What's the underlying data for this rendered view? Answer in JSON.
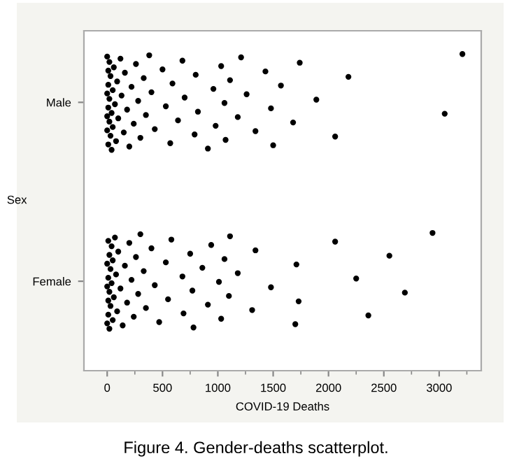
{
  "chart_data": {
    "type": "scatter",
    "orientation": "horizontal",
    "categories": [
      "Male",
      "Female"
    ],
    "xlabel": "COVID-19 Deaths",
    "ylabel": "Sex",
    "xlim": [
      -210,
      3380
    ],
    "xticks": [
      0,
      500,
      1000,
      1500,
      2000,
      2500,
      3000
    ],
    "grid": false,
    "legend": false,
    "marker": "circle",
    "series": [
      {
        "color": "#000000",
        "x": [
          "Male",
          "Male",
          "Male",
          "Male",
          "Male",
          "Male",
          "Male",
          "Male",
          "Male",
          "Male",
          "Male",
          "Male",
          "Male",
          "Male",
          "Male",
          "Male",
          "Male",
          "Male",
          "Male",
          "Male",
          "Male",
          "Male",
          "Male",
          "Male",
          "Male",
          "Male",
          "Male",
          "Male",
          "Male",
          "Male",
          "Male",
          "Male",
          "Male",
          "Male",
          "Male",
          "Male",
          "Male",
          "Male",
          "Male",
          "Male",
          "Male",
          "Male",
          "Male",
          "Male",
          "Male",
          "Male",
          "Male",
          "Male",
          "Male",
          "Male",
          "Male",
          "Male",
          "Male",
          "Male",
          "Male",
          "Male",
          "Male",
          "Male",
          "Male",
          "Male",
          "Male",
          "Male",
          "Male",
          "Male",
          "Male",
          "Male",
          "Male",
          "Male",
          "Male",
          "Male"
        ],
        "values": [
          3210,
          3050,
          2180,
          2060,
          1890,
          1740,
          1680,
          1570,
          1500,
          1480,
          1430,
          1340,
          1260,
          1210,
          1180,
          1110,
          1070,
          1060,
          1030,
          980,
          960,
          910,
          820,
          800,
          790,
          700,
          680,
          640,
          590,
          570,
          530,
          500,
          430,
          400,
          380,
          350,
          330,
          300,
          280,
          260,
          240,
          220,
          200,
          180,
          160,
          150,
          130,
          120,
          100,
          90,
          80,
          70,
          60,
          50,
          50,
          40,
          40,
          30,
          30,
          20,
          20,
          20,
          10,
          10,
          10,
          10,
          0,
          0,
          0,
          0
        ]
      },
      {
        "color": "#000000",
        "x": [
          "Female",
          "Female",
          "Female",
          "Female",
          "Female",
          "Female",
          "Female",
          "Female",
          "Female",
          "Female",
          "Female",
          "Female",
          "Female",
          "Female",
          "Female",
          "Female",
          "Female",
          "Female",
          "Female",
          "Female",
          "Female",
          "Female",
          "Female",
          "Female",
          "Female",
          "Female",
          "Female",
          "Female",
          "Female",
          "Female",
          "Female",
          "Female",
          "Female",
          "Female",
          "Female",
          "Female",
          "Female",
          "Female",
          "Female",
          "Female",
          "Female",
          "Female",
          "Female",
          "Female",
          "Female",
          "Female",
          "Female",
          "Female",
          "Female",
          "Female",
          "Female",
          "Female",
          "Female",
          "Female",
          "Female",
          "Female",
          "Female",
          "Female",
          "Female",
          "Female",
          "Female",
          "Female",
          "Female",
          "Female",
          "Female"
        ],
        "values": [
          2940,
          2690,
          2550,
          2360,
          2250,
          2060,
          1730,
          1710,
          1700,
          1480,
          1340,
          1310,
          1180,
          1110,
          1100,
          1060,
          1030,
          1010,
          940,
          910,
          860,
          780,
          770,
          750,
          690,
          680,
          580,
          550,
          530,
          470,
          430,
          400,
          350,
          330,
          300,
          280,
          260,
          240,
          220,
          200,
          180,
          160,
          140,
          120,
          100,
          90,
          80,
          70,
          60,
          50,
          50,
          40,
          40,
          30,
          30,
          20,
          20,
          20,
          10,
          10,
          10,
          10,
          0,
          0,
          0
        ]
      }
    ],
    "annotations": [
      "Figure 4. Gender-deaths scatterplot."
    ]
  }
}
